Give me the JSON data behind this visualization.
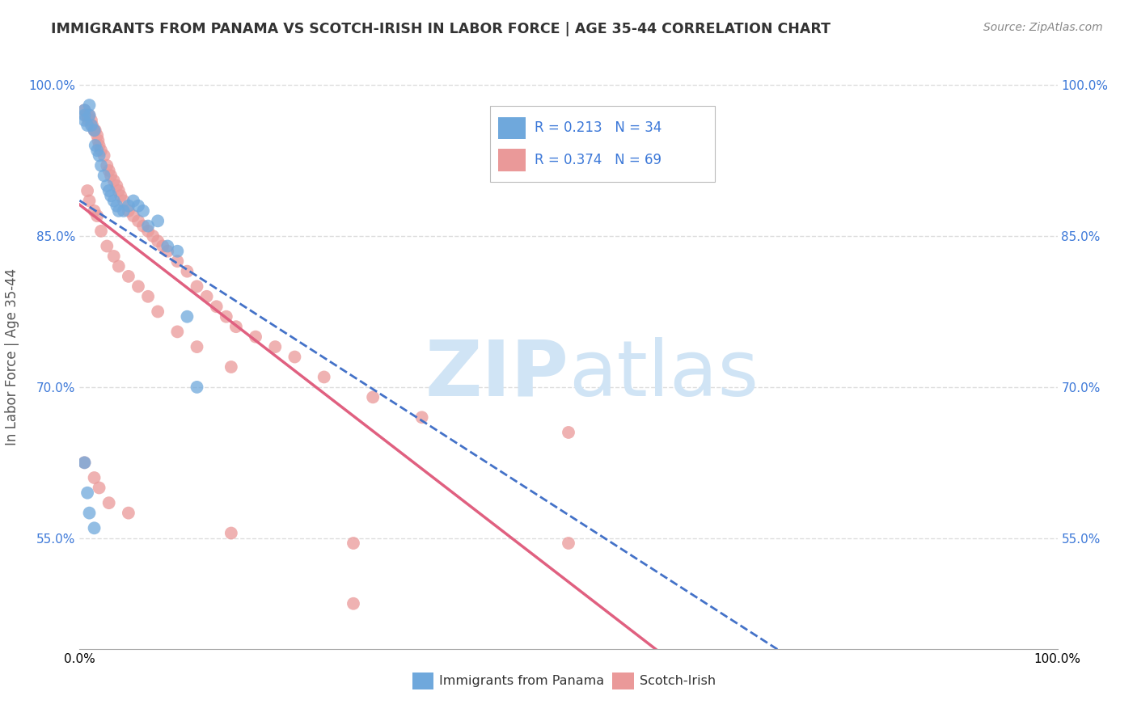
{
  "title": "IMMIGRANTS FROM PANAMA VS SCOTCH-IRISH IN LABOR FORCE | AGE 35-44 CORRELATION CHART",
  "source": "Source: ZipAtlas.com",
  "ylabel": "In Labor Force | Age 35-44",
  "xlim": [
    0.0,
    1.0
  ],
  "ylim": [
    0.44,
    1.02
  ],
  "yticks": [
    0.55,
    0.7,
    0.85,
    1.0
  ],
  "ytick_labels": [
    "55.0%",
    "70.0%",
    "85.0%",
    "100.0%"
  ],
  "panama_R": 0.213,
  "panama_N": 34,
  "scotch_R": 0.374,
  "scotch_N": 69,
  "panama_color": "#6fa8dc",
  "scotch_color": "#ea9999",
  "panama_line_color": "#4472c8",
  "scotch_line_color": "#e06080",
  "rn_color": "#3c78d8",
  "background_color": "#ffffff",
  "grid_color": "#dddddd",
  "watermark_zip": "ZIP",
  "watermark_atlas": "atlas",
  "watermark_color": "#d0e4f5",
  "panama_x": [
    0.005,
    0.005,
    0.005,
    0.008,
    0.01,
    0.01,
    0.012,
    0.015,
    0.016,
    0.018,
    0.02,
    0.022,
    0.025,
    0.028,
    0.03,
    0.032,
    0.035,
    0.038,
    0.04,
    0.045,
    0.05,
    0.055,
    0.06,
    0.065,
    0.07,
    0.08,
    0.09,
    0.1,
    0.11,
    0.12,
    0.005,
    0.008,
    0.01,
    0.015
  ],
  "panama_y": [
    0.975,
    0.97,
    0.965,
    0.96,
    0.98,
    0.97,
    0.96,
    0.955,
    0.94,
    0.935,
    0.93,
    0.92,
    0.91,
    0.9,
    0.895,
    0.89,
    0.885,
    0.88,
    0.875,
    0.875,
    0.88,
    0.885,
    0.88,
    0.875,
    0.86,
    0.865,
    0.84,
    0.835,
    0.77,
    0.7,
    0.625,
    0.595,
    0.575,
    0.56
  ],
  "scotch_x": [
    0.005,
    0.006,
    0.008,
    0.009,
    0.01,
    0.012,
    0.013,
    0.015,
    0.016,
    0.018,
    0.019,
    0.02,
    0.022,
    0.025,
    0.028,
    0.03,
    0.032,
    0.035,
    0.038,
    0.04,
    0.042,
    0.045,
    0.05,
    0.055,
    0.06,
    0.065,
    0.07,
    0.075,
    0.08,
    0.085,
    0.09,
    0.1,
    0.11,
    0.12,
    0.13,
    0.14,
    0.15,
    0.16,
    0.18,
    0.2,
    0.22,
    0.25,
    0.3,
    0.35,
    0.5,
    0.008,
    0.01,
    0.015,
    0.018,
    0.022,
    0.028,
    0.035,
    0.04,
    0.05,
    0.06,
    0.07,
    0.08,
    0.1,
    0.12,
    0.155,
    0.005,
    0.015,
    0.02,
    0.03,
    0.05,
    0.155,
    0.28,
    0.28,
    0.5
  ],
  "scotch_y": [
    0.975,
    0.97,
    0.97,
    0.965,
    0.97,
    0.965,
    0.96,
    0.955,
    0.955,
    0.95,
    0.945,
    0.94,
    0.935,
    0.93,
    0.92,
    0.915,
    0.91,
    0.905,
    0.9,
    0.895,
    0.89,
    0.885,
    0.875,
    0.87,
    0.865,
    0.86,
    0.855,
    0.85,
    0.845,
    0.84,
    0.835,
    0.825,
    0.815,
    0.8,
    0.79,
    0.78,
    0.77,
    0.76,
    0.75,
    0.74,
    0.73,
    0.71,
    0.69,
    0.67,
    0.655,
    0.895,
    0.885,
    0.875,
    0.87,
    0.855,
    0.84,
    0.83,
    0.82,
    0.81,
    0.8,
    0.79,
    0.775,
    0.755,
    0.74,
    0.72,
    0.625,
    0.61,
    0.6,
    0.585,
    0.575,
    0.555,
    0.545,
    0.485,
    0.545
  ]
}
